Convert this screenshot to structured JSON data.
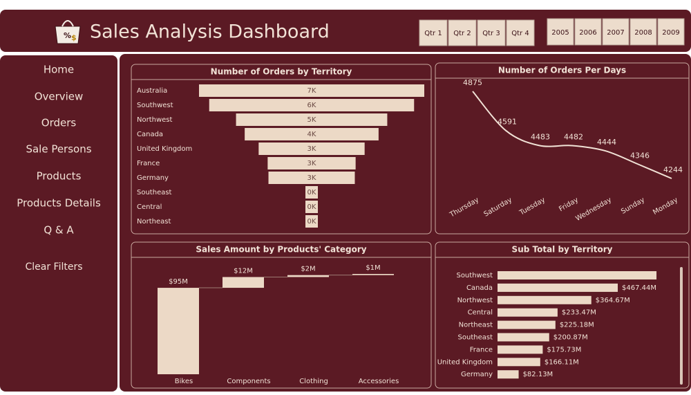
{
  "header": {
    "title": "Sales Analysis Dashboard"
  },
  "filters": {
    "quarters": [
      "Qtr 1",
      "Qtr 2",
      "Qtr 3",
      "Qtr 4"
    ],
    "years": [
      "2005",
      "2006",
      "2007",
      "2008",
      "2009"
    ]
  },
  "nav": {
    "items": [
      "Home",
      "Overview",
      "Orders",
      "Sale Persons",
      "Products",
      "Products Details",
      "Q & A"
    ],
    "clear": "Clear Filters"
  },
  "chart_data": [
    {
      "type": "funnel",
      "title": "Number of Orders by Territory",
      "categories": [
        "Australia",
        "Southwest",
        "Northwest",
        "Canada",
        "United Kingdom",
        "France",
        "Germany",
        "Southeast",
        "Central",
        "Northeast"
      ],
      "values": [
        6843,
        6224,
        4594,
        4067,
        3219,
        2672,
        2623,
        40,
        20,
        35
      ],
      "value_labels": [
        "7K",
        "6K",
        "5K",
        "4K",
        "3K",
        "3K",
        "3K",
        "0K",
        "0K",
        "0K"
      ],
      "color": "#ecd9c6"
    },
    {
      "type": "line",
      "title": "Number of Orders Per Days",
      "categories": [
        "Thursday",
        "Saturday",
        "Tuesday",
        "Friday",
        "Wednesday",
        "Sunday",
        "Monday"
      ],
      "values": [
        4875,
        4591,
        4483,
        4482,
        4444,
        4346,
        4244
      ],
      "color": "#f1e2d6"
    },
    {
      "type": "waterfall",
      "title": "Sales Amount by Products' Category",
      "categories": [
        "Bikes",
        "Components",
        "Clothing",
        "Accessories"
      ],
      "values": [
        94651173,
        11802593,
        2120543,
        1272057
      ],
      "value_labels": [
        "$95M",
        "$12M",
        "$2M",
        "$1M"
      ],
      "color": "#ecd9c6"
    },
    {
      "type": "hbar",
      "title": "Sub Total by Territory",
      "categories": [
        "Southwest",
        "Canada",
        "Northwest",
        "Central",
        "Northeast",
        "Southeast",
        "France",
        "United Kingdom",
        "Germany"
      ],
      "values": [
        618000000,
        467440000,
        364670000,
        233470000,
        225180000,
        200870000,
        175730000,
        166110000,
        82130000
      ],
      "value_labels": [
        null,
        "$467.44M",
        "$364.67M",
        "$233.47M",
        "$225.18M",
        "$200.87M",
        "$175.73M",
        "$166.11M",
        "$82.13M"
      ],
      "color": "#ecd9c6"
    }
  ]
}
